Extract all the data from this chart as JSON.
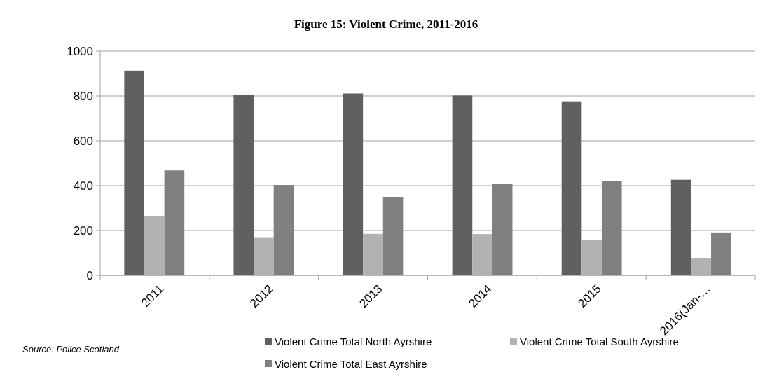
{
  "chart_data": {
    "type": "bar",
    "title": "Figure 15: Violent Crime, 2011-2016",
    "categories": [
      "2011",
      "2012",
      "2013",
      "2014",
      "2015",
      "2016(Jan-…"
    ],
    "series": [
      {
        "name": "Violent Crime Total North Ayrshire",
        "color": "#606060",
        "values": [
          913,
          805,
          811,
          802,
          776,
          426
        ]
      },
      {
        "name": "Violent Crime Total South Ayrshire",
        "color": "#b2b2b2",
        "values": [
          265,
          167,
          185,
          184,
          158,
          78
        ]
      },
      {
        "name": "Violent Crime Total East Ayrshire",
        "color": "#808080",
        "values": [
          468,
          403,
          350,
          408,
          420,
          191
        ]
      }
    ],
    "ylim": [
      0,
      1000
    ],
    "yticks": [
      0,
      200,
      400,
      600,
      800,
      1000
    ],
    "grid": "y",
    "legend": "bottom",
    "annotations": [
      "Source: Police Scotland"
    ]
  }
}
